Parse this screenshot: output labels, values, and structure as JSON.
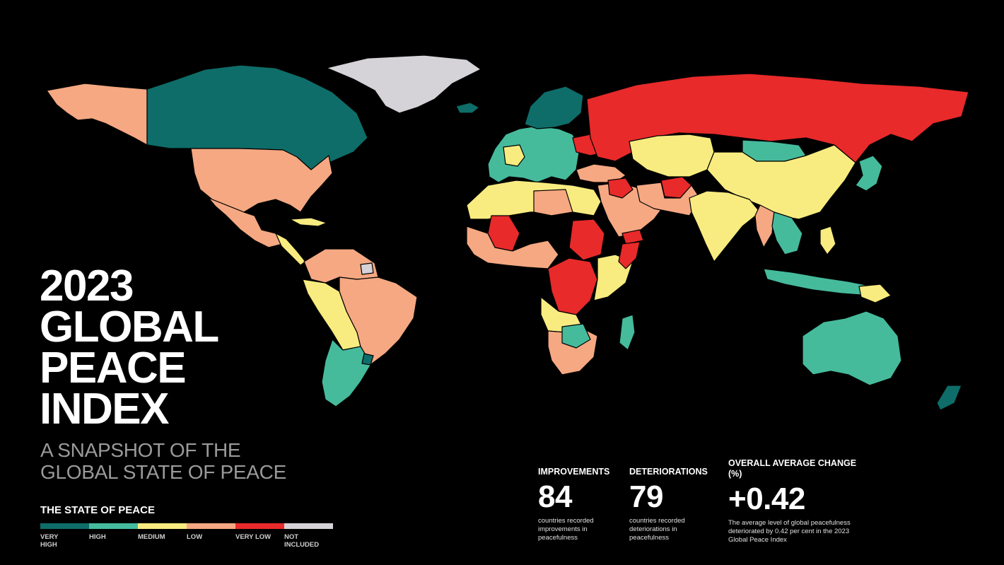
{
  "title": {
    "lines": [
      "2023",
      "GLOBAL",
      "PEACE",
      "INDEX"
    ],
    "subtitle_lines": [
      "A SNAPSHOT OF THE",
      "GLOBAL STATE OF PEACE"
    ]
  },
  "legend": {
    "title": "THE STATE OF PEACE",
    "items": [
      {
        "label": "VERY\nHIGH",
        "color": "#0e6d69"
      },
      {
        "label": "HIGH",
        "color": "#45bb9c"
      },
      {
        "label": "MEDIUM",
        "color": "#f8ec80"
      },
      {
        "label": "LOW",
        "color": "#f5a882"
      },
      {
        "label": "VERY LOW",
        "color": "#e82a2a"
      },
      {
        "label": "NOT\nINCLUDED",
        "color": "#d6d3d8"
      }
    ]
  },
  "stats": {
    "improvements": {
      "heading": "IMPROVEMENTS",
      "value": "84",
      "description": "countries recorded improvements in peacefulness"
    },
    "deteriorations": {
      "heading": "DETERIORATIONS",
      "value": "79",
      "description": "countries recorded deteriorations in peacefulness"
    },
    "average": {
      "heading": "OVERALL AVERAGE CHANGE (%)",
      "value": "+0.42",
      "description": "The average level of global peacefulness deteriorated by 0.42 per cent in the 2023 Global Peace Index"
    }
  },
  "map": {
    "background": "#000000",
    "regions": [
      {
        "name": "alaska",
        "level": "low"
      },
      {
        "name": "canada",
        "level": "very-high"
      },
      {
        "name": "greenland",
        "level": "not-included"
      },
      {
        "name": "united-states",
        "level": "low"
      },
      {
        "name": "mexico",
        "level": "low"
      },
      {
        "name": "south-america-north",
        "level": "low"
      },
      {
        "name": "brazil",
        "level": "low"
      },
      {
        "name": "argentina-chile",
        "level": "high"
      },
      {
        "name": "europe",
        "level": "high"
      },
      {
        "name": "russia",
        "level": "very-low"
      },
      {
        "name": "central-asia",
        "level": "medium"
      },
      {
        "name": "china",
        "level": "medium"
      },
      {
        "name": "mongolia",
        "level": "high"
      },
      {
        "name": "india",
        "level": "medium"
      },
      {
        "name": "middle-east",
        "level": "low"
      },
      {
        "name": "north-africa",
        "level": "medium"
      },
      {
        "name": "sahel",
        "level": "very-low"
      },
      {
        "name": "central-africa",
        "level": "very-low"
      },
      {
        "name": "southern-africa",
        "level": "low"
      },
      {
        "name": "southeast-asia",
        "level": "high"
      },
      {
        "name": "japan",
        "level": "high"
      },
      {
        "name": "australia",
        "level": "high"
      },
      {
        "name": "new-zealand",
        "level": "very-high"
      }
    ]
  }
}
